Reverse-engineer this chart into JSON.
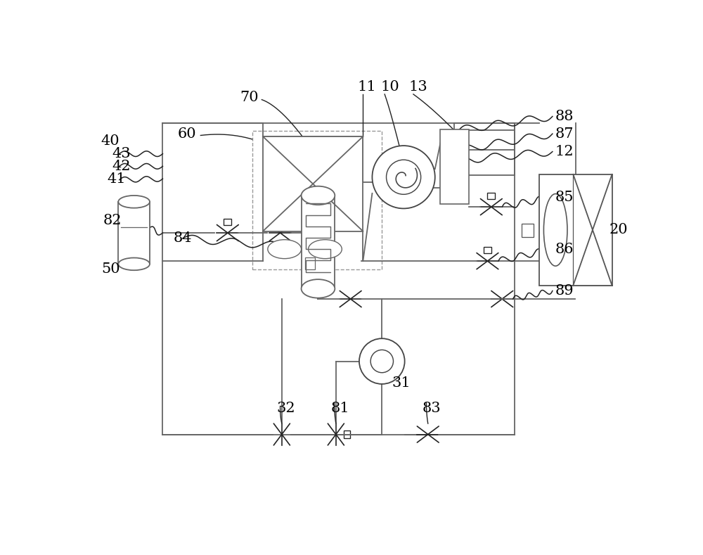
{
  "lc": "#666666",
  "dc": "#222222",
  "bg": "#ffffff",
  "lw_main": 1.3,
  "lw_comp": 1.2,
  "fig_w": 10.0,
  "fig_h": 7.89,
  "dpi": 100
}
